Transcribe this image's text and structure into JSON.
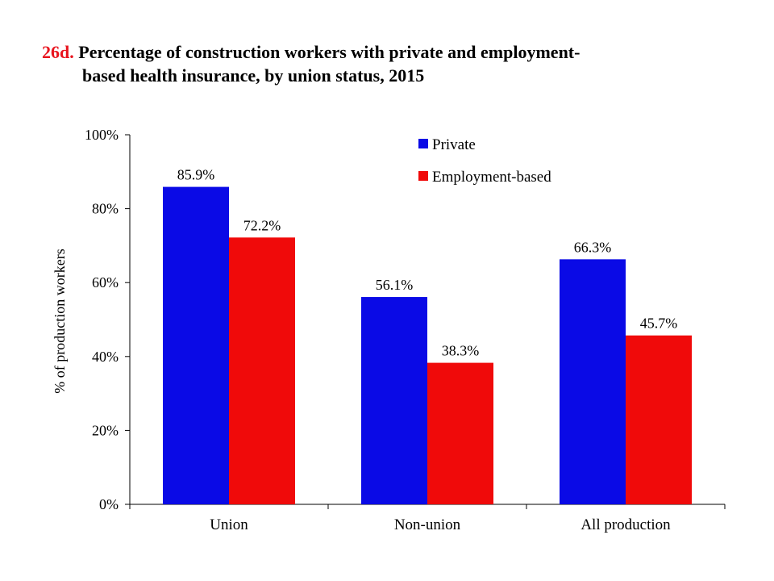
{
  "title": {
    "figure_number": "26d.",
    "line1": "Percentage of construction workers with private and employment-",
    "line2": "based health insurance, by union status, 2015"
  },
  "chart_data": {
    "type": "bar",
    "title": "Percentage of construction workers with private and employment-based health insurance, by union status, 2015",
    "xlabel": "",
    "ylabel": "% of production workers",
    "categories": [
      "Union",
      "Non-union",
      "All production"
    ],
    "series": [
      {
        "name": "Private",
        "color": "#0a0ae6",
        "values": [
          85.9,
          56.1,
          66.3
        ],
        "labels": [
          "85.9%",
          "56.1%",
          "66.3%"
        ]
      },
      {
        "name": "Employment-based",
        "color": "#f00a0a",
        "values": [
          72.2,
          38.3,
          45.7
        ],
        "labels": [
          "72.2%",
          "38.3%",
          "45.7%"
        ]
      }
    ],
    "ylim": [
      0,
      100
    ],
    "yticks": [
      0,
      20,
      40,
      60,
      80,
      100
    ],
    "ytick_labels": [
      "0%",
      "20%",
      "40%",
      "60%",
      "80%",
      "100%"
    ],
    "grid": false,
    "legend_position": "top-right"
  }
}
